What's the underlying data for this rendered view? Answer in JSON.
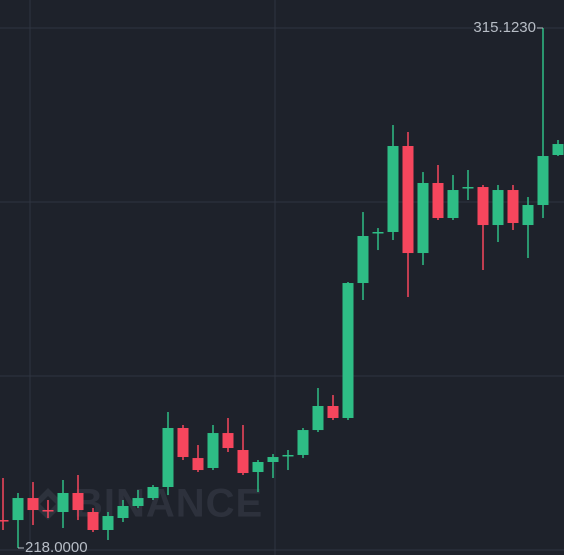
{
  "chart_data": {
    "type": "candlestick",
    "watermark": "BINANCE",
    "ylim": [
      216.69,
      320.35
    ],
    "up_color": "#2ebd85",
    "down_color": "#f6465d",
    "open": [
      223.22,
      223.22,
      227.33,
      225.09,
      224.72,
      228.27,
      224.72,
      221.36,
      223.6,
      225.84,
      227.33,
      229.39,
      240.41,
      234.8,
      232.94,
      239.47,
      236.3,
      232.19,
      234.06,
      235.18,
      235.37,
      240.03,
      244.52,
      242.28,
      267.49,
      276.83,
      277.02,
      293.08,
      273.09,
      286.17,
      279.63,
      285.42,
      285.42,
      278.32,
      284.86,
      278.32,
      282.06,
      291.4
    ],
    "high": [
      231.07,
      228.27,
      230.32,
      226.96,
      230.7,
      231.63,
      225.47,
      224.72,
      226.96,
      228.83,
      229.76,
      243.4,
      240.97,
      237.23,
      240.97,
      242.28,
      240.97,
      234.43,
      235.55,
      236.3,
      240.41,
      247.88,
      246.57,
      267.68,
      280.75,
      277.76,
      297.0,
      295.69,
      288.22,
      289.53,
      287.66,
      288.6,
      285.8,
      285.8,
      285.8,
      283.55,
      315.123,
      294.2
    ],
    "low": [
      221.36,
      218.0,
      222.29,
      223.6,
      221.73,
      223.22,
      220.98,
      219.49,
      222.85,
      225.47,
      226.96,
      227.89,
      234.43,
      232.19,
      232.56,
      235.93,
      231.63,
      228.45,
      231.07,
      232.56,
      234.8,
      239.66,
      241.9,
      241.9,
      264.32,
      273.65,
      275.52,
      264.88,
      270.85,
      279.26,
      279.26,
      282.99,
      269.92,
      275.15,
      277.39,
      272.16,
      279.63,
      291.21
    ],
    "close": [
      223.0,
      227.33,
      225.09,
      224.9,
      228.27,
      225.09,
      221.36,
      223.97,
      225.84,
      227.33,
      229.39,
      240.41,
      234.99,
      232.56,
      239.47,
      236.67,
      232.0,
      234.06,
      234.99,
      235.37,
      240.03,
      244.52,
      242.28,
      267.49,
      276.27,
      277.02,
      293.08,
      273.09,
      286.17,
      279.63,
      284.86,
      285.42,
      278.32,
      284.86,
      278.7,
      282.06,
      291.21,
      293.45
    ],
    "annotations": [
      {
        "value": 315.123,
        "label": "315.1230"
      },
      {
        "value": 218.0,
        "label": "218.0000"
      }
    ]
  }
}
